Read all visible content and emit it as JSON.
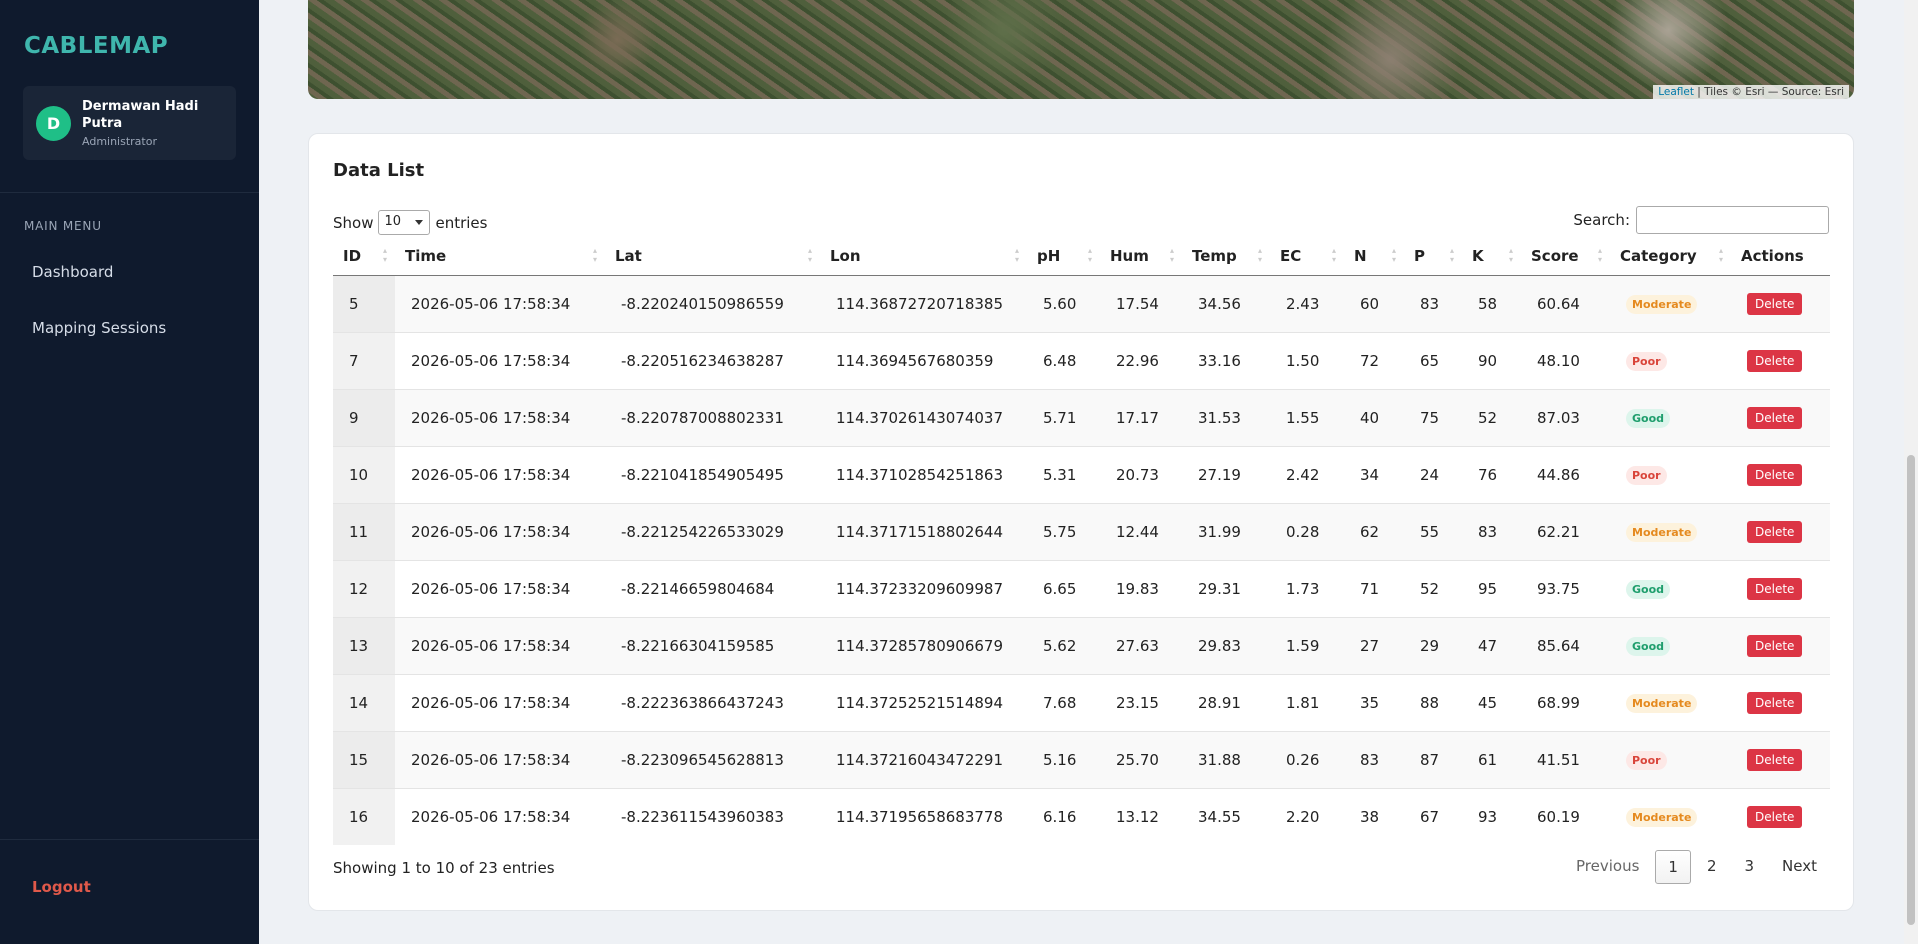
{
  "sidebar": {
    "brand": "CABLEMAP",
    "avatar_initial": "D",
    "user_name": "Dermawan Hadi Putra",
    "user_role": "Administrator",
    "menu_heading": "MAIN MENU",
    "menu": [
      "Dashboard",
      "Mapping Sessions"
    ],
    "logout": "Logout"
  },
  "map": {
    "attribution_link": "Leaflet",
    "attribution_text": "| Tiles © Esri — Source: Esri"
  },
  "card": {
    "title": "Data List",
    "show_label": "Show",
    "entries_select": "10",
    "entries_label": "entries",
    "search_label": "Search:",
    "table": {
      "columns": [
        "ID",
        "Time",
        "Lat",
        "Lon",
        "pH",
        "Hum",
        "Temp",
        "EC",
        "N",
        "P",
        "K",
        "Score",
        "Category",
        "Actions"
      ],
      "rows": [
        [
          "5",
          "2026-05-06 17:58:34",
          "-8.220240150986559",
          "114.36872720718385",
          "5.60",
          "17.54",
          "34.56",
          "2.43",
          "60",
          "83",
          "58",
          "60.64",
          "Moderate",
          "Delete"
        ],
        [
          "7",
          "2026-05-06 17:58:34",
          "-8.220516234638287",
          "114.3694567680359",
          "6.48",
          "22.96",
          "33.16",
          "1.50",
          "72",
          "65",
          "90",
          "48.10",
          "Poor",
          "Delete"
        ],
        [
          "9",
          "2026-05-06 17:58:34",
          "-8.220787008802331",
          "114.37026143074037",
          "5.71",
          "17.17",
          "31.53",
          "1.55",
          "40",
          "75",
          "52",
          "87.03",
          "Good",
          "Delete"
        ],
        [
          "10",
          "2026-05-06 17:58:34",
          "-8.221041854905495",
          "114.37102854251863",
          "5.31",
          "20.73",
          "27.19",
          "2.42",
          "34",
          "24",
          "76",
          "44.86",
          "Poor",
          "Delete"
        ],
        [
          "11",
          "2026-05-06 17:58:34",
          "-8.221254226533029",
          "114.37171518802644",
          "5.75",
          "12.44",
          "31.99",
          "0.28",
          "62",
          "55",
          "83",
          "62.21",
          "Moderate",
          "Delete"
        ],
        [
          "12",
          "2026-05-06 17:58:34",
          "-8.22146659804684",
          "114.37233209609987",
          "6.65",
          "19.83",
          "29.31",
          "1.73",
          "71",
          "52",
          "95",
          "93.75",
          "Good",
          "Delete"
        ],
        [
          "13",
          "2026-05-06 17:58:34",
          "-8.22166304159585",
          "114.37285780906679",
          "5.62",
          "27.63",
          "29.83",
          "1.59",
          "27",
          "29",
          "47",
          "85.64",
          "Good",
          "Delete"
        ],
        [
          "14",
          "2026-05-06 17:58:34",
          "-8.222363866437243",
          "114.37252521514894",
          "7.68",
          "23.15",
          "28.91",
          "1.81",
          "35",
          "88",
          "45",
          "68.99",
          "Moderate",
          "Delete"
        ],
        [
          "15",
          "2026-05-06 17:58:34",
          "-8.223096545628813",
          "114.37216043472291",
          "5.16",
          "25.70",
          "31.88",
          "0.26",
          "83",
          "87",
          "61",
          "41.51",
          "Poor",
          "Delete"
        ],
        [
          "16",
          "2026-05-06 17:58:34",
          "-8.223611543960383",
          "114.37195658683778",
          "6.16",
          "13.12",
          "34.55",
          "2.20",
          "38",
          "67",
          "93",
          "60.19",
          "Moderate",
          "Delete"
        ]
      ]
    },
    "info": "Showing 1 to 10 of 23 entries",
    "pagination": [
      "Previous",
      "1",
      "2",
      "3",
      "Next"
    ]
  }
}
